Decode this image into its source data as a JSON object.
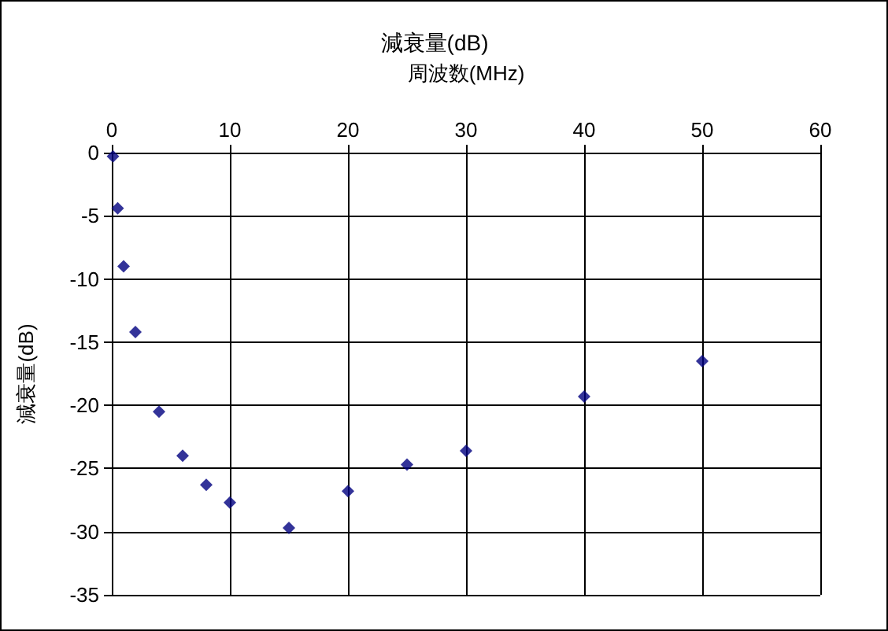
{
  "chart_data": {
    "type": "scatter",
    "title": "減衰量(dB)",
    "xlabel": "周波数(MHz)",
    "ylabel": "減衰量(dB)",
    "x": [
      0.1,
      0.5,
      1,
      2,
      4,
      6,
      8,
      10,
      15,
      20,
      25,
      30,
      40,
      50
    ],
    "series": [
      {
        "color": "#000080",
        "values": [
          -0.3,
          -4.4,
          -9.0,
          -14.2,
          -20.5,
          -24.0,
          -26.3,
          -27.7,
          -29.7,
          -26.8,
          -24.7,
          -23.6,
          -19.3,
          -16.5
        ]
      }
    ],
    "xlim": [
      0,
      60
    ],
    "xticks": [
      0,
      10,
      20,
      30,
      40,
      50,
      60
    ],
    "ylim": [
      -35,
      0
    ],
    "yticks": [
      -35,
      -30,
      -25,
      -20,
      -15,
      -10,
      -5,
      0
    ],
    "grid": true,
    "marker": "diamond"
  }
}
